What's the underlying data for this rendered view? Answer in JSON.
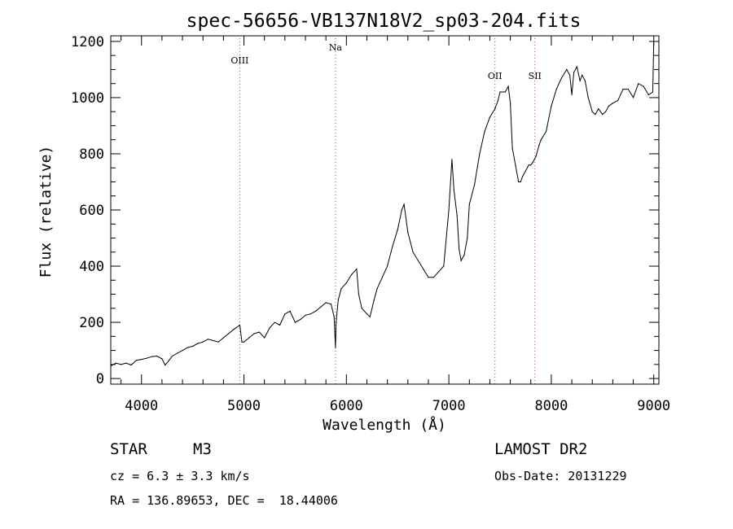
{
  "chart_data": {
    "type": "line",
    "title": "spec-56656-VB137N18V2_sp03-204.fits",
    "xlabel": "Wavelength (Å)",
    "ylabel": "Flux (relative)",
    "xlim": [
      3700,
      9050
    ],
    "ylim": [
      -20,
      1220
    ],
    "x_ticks": [
      4000,
      5000,
      6000,
      7000,
      8000,
      9000
    ],
    "y_ticks": [
      0,
      200,
      400,
      600,
      800,
      1000,
      1200
    ],
    "grid": false,
    "lines": [
      {
        "label": "OIII",
        "x": 4959
      },
      {
        "label": "Na",
        "x": 5893
      },
      {
        "label": "OII",
        "x": 7450
      },
      {
        "label": "SII",
        "x": 7840
      }
    ],
    "series": [
      {
        "x": [
          3700,
          3750,
          3800,
          3850,
          3900,
          3950,
          4000,
          4050,
          4100,
          4150,
          4200,
          4230,
          4260,
          4300,
          4350,
          4400,
          4450,
          4500,
          4550,
          4600,
          4650,
          4700,
          4750,
          4800,
          4850,
          4900,
          4960,
          4980,
          5000,
          5050,
          5100,
          5150,
          5200,
          5250,
          5300,
          5350,
          5400,
          5450,
          5500,
          5550,
          5600,
          5650,
          5700,
          5750,
          5800,
          5850,
          5880,
          5893,
          5900,
          5920,
          5950,
          6000,
          6050,
          6100,
          6120,
          6150,
          6200,
          6230,
          6270,
          6300,
          6350,
          6400,
          6450,
          6500,
          6540,
          6563,
          6600,
          6650,
          6700,
          6750,
          6800,
          6850,
          6900,
          6950,
          7000,
          7030,
          7050,
          7080,
          7100,
          7120,
          7150,
          7180,
          7200,
          7250,
          7300,
          7350,
          7400,
          7450,
          7480,
          7500,
          7550,
          7580,
          7600,
          7620,
          7650,
          7680,
          7700,
          7720,
          7750,
          7780,
          7800,
          7820,
          7850,
          7880,
          7900,
          7950,
          8000,
          8050,
          8100,
          8150,
          8180,
          8200,
          8220,
          8250,
          8280,
          8300,
          8330,
          8360,
          8400,
          8430,
          8460,
          8500,
          8530,
          8560,
          8600,
          8650,
          8700,
          8750,
          8800,
          8850,
          8900,
          8950,
          8990,
          9000
        ],
        "y": [
          45,
          55,
          50,
          55,
          48,
          65,
          68,
          72,
          78,
          80,
          70,
          48,
          60,
          80,
          90,
          100,
          110,
          115,
          125,
          130,
          140,
          135,
          130,
          145,
          160,
          175,
          190,
          130,
          130,
          145,
          160,
          165,
          145,
          180,
          200,
          190,
          230,
          240,
          200,
          210,
          225,
          230,
          240,
          255,
          270,
          265,
          220,
          110,
          200,
          280,
          320,
          340,
          370,
          390,
          300,
          250,
          230,
          220,
          280,
          320,
          360,
          400,
          470,
          530,
          600,
          620,
          520,
          450,
          420,
          390,
          360,
          360,
          380,
          400,
          600,
          780,
          670,
          580,
          460,
          420,
          440,
          500,
          620,
          690,
          800,
          880,
          930,
          960,
          990,
          1020,
          1020,
          1040,
          980,
          820,
          760,
          700,
          700,
          720,
          740,
          760,
          760,
          770,
          790,
          830,
          850,
          880,
          970,
          1030,
          1070,
          1100,
          1080,
          1010,
          1090,
          1110,
          1060,
          1080,
          1060,
          1000,
          950,
          940,
          960,
          940,
          950,
          970,
          980,
          990,
          1030,
          1030,
          1000,
          1050,
          1040,
          1010,
          1020,
          1200
        ]
      }
    ]
  },
  "info": {
    "class": "STAR",
    "subclass": "M3",
    "survey": "LAMOST DR2",
    "cz": "cz = 6.3 ± 3.3 km/s",
    "obs_date": "Obs-Date: 20131229",
    "coords": "RA = 136.89653, DEC =  18.44006"
  }
}
